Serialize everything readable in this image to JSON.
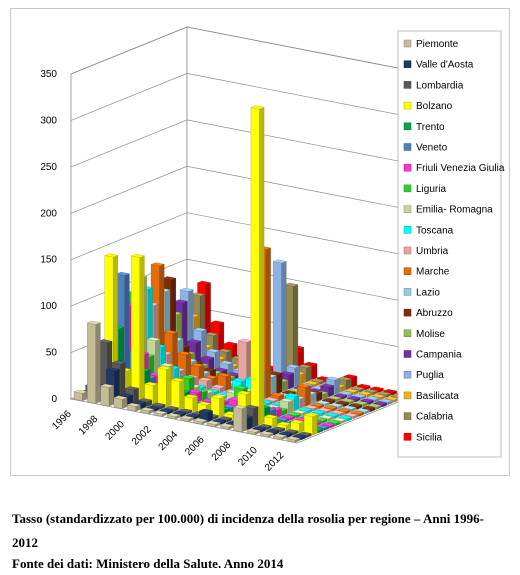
{
  "caption": {
    "line1": "Tasso (standardizzato per 100.000) di incidenza della rosolia per regione – Anni 1996-",
    "line2": "2012",
    "line3": "Fonte dei dati: Ministero della Salute. Anno 2014"
  },
  "chart_data": {
    "type": "bar",
    "subtype": "3d-column",
    "title": "",
    "xlabel": "",
    "ylabel": "",
    "ylim": [
      0,
      350
    ],
    "yticks": [
      0,
      50,
      100,
      150,
      200,
      250,
      300,
      350
    ],
    "x_tick_labels": [
      "1996",
      "1998",
      "2000",
      "2002",
      "2004",
      "2006",
      "2008",
      "2010",
      "2012"
    ],
    "categories": [
      "1996",
      "1997",
      "1998",
      "1999",
      "2000",
      "2001",
      "2002",
      "2003",
      "2004",
      "2005",
      "2006",
      "2007",
      "2008",
      "2009",
      "2010",
      "2011",
      "2012"
    ],
    "grid": true,
    "legend_position": "right",
    "series": [
      {
        "name": "Piemonte",
        "color": "#c4bd97",
        "values": [
          8,
          85,
          20,
          10,
          5,
          3,
          2,
          1,
          1,
          1,
          1,
          1,
          25,
          1,
          1,
          0,
          0
        ]
      },
      {
        "name": "Valle d'Aosta",
        "color": "#1f3864",
        "values": [
          5,
          15,
          35,
          10,
          5,
          2,
          1,
          0,
          0,
          10,
          0,
          0,
          12,
          0,
          0,
          0,
          0
        ]
      },
      {
        "name": "Lombardia",
        "color": "#595959",
        "values": [
          10,
          60,
          40,
          15,
          5,
          3,
          2,
          1,
          2,
          2,
          1,
          1,
          20,
          1,
          1,
          1,
          0
        ]
      },
      {
        "name": "Bolzano",
        "color": "#ffff00",
        "values": [
          5,
          150,
          30,
          155,
          20,
          40,
          30,
          15,
          10,
          20,
          5,
          30,
          340,
          10,
          5,
          10,
          20
        ]
      },
      {
        "name": "Trento",
        "color": "#00a651",
        "values": [
          3,
          70,
          20,
          30,
          10,
          5,
          15,
          5,
          2,
          5,
          1,
          2,
          15,
          2,
          1,
          1,
          1
        ]
      },
      {
        "name": "Veneto",
        "color": "#4f81bd",
        "values": [
          5,
          125,
          45,
          20,
          10,
          5,
          3,
          2,
          1,
          5,
          1,
          1,
          10,
          1,
          1,
          1,
          0
        ]
      },
      {
        "name": "Friuli Venezia Giulia",
        "color": "#ff33cc",
        "values": [
          3,
          90,
          40,
          20,
          10,
          5,
          10,
          3,
          5,
          10,
          2,
          2,
          8,
          1,
          1,
          1,
          0
        ]
      },
      {
        "name": "Liguria",
        "color": "#33cc33",
        "values": [
          5,
          100,
          35,
          15,
          10,
          20,
          8,
          3,
          2,
          20,
          2,
          1,
          5,
          1,
          1,
          1,
          1
        ]
      },
      {
        "name": "Emilia- Romagna",
        "color": "#c3d69b",
        "values": [
          5,
          115,
          50,
          25,
          10,
          8,
          5,
          3,
          10,
          15,
          2,
          2,
          12,
          1,
          1,
          1,
          1
        ]
      },
      {
        "name": "Toscana",
        "color": "#00ffff",
        "values": [
          5,
          100,
          40,
          20,
          10,
          5,
          3,
          2,
          20,
          25,
          1,
          2,
          15,
          1,
          1,
          1,
          1
        ]
      },
      {
        "name": "Umbria",
        "color": "#e6a5a0",
        "values": [
          3,
          80,
          30,
          15,
          10,
          10,
          5,
          3,
          60,
          30,
          2,
          1,
          10,
          1,
          1,
          1,
          1
        ]
      },
      {
        "name": "Marche",
        "color": "#e46c0a",
        "values": [
          5,
          120,
          50,
          30,
          20,
          10,
          15,
          5,
          15,
          160,
          5,
          3,
          20,
          2,
          1,
          1,
          1
        ]
      },
      {
        "name": "Lazio",
        "color": "#93cddd",
        "values": [
          5,
          90,
          40,
          20,
          10,
          5,
          5,
          3,
          15,
          20,
          2,
          2,
          10,
          1,
          1,
          1,
          1
        ]
      },
      {
        "name": "Abruzzo",
        "color": "#7f2c0c",
        "values": [
          3,
          100,
          30,
          15,
          10,
          5,
          3,
          2,
          10,
          20,
          1,
          1,
          8,
          1,
          1,
          1,
          1
        ]
      },
      {
        "name": "Molise",
        "color": "#9bbb59",
        "values": [
          2,
          60,
          20,
          10,
          5,
          3,
          2,
          1,
          5,
          10,
          1,
          1,
          5,
          1,
          1,
          1,
          0
        ]
      },
      {
        "name": "Campania",
        "color": "#7030a0",
        "values": [
          3,
          70,
          30,
          15,
          5,
          3,
          2,
          1,
          10,
          15,
          1,
          1,
          10,
          1,
          1,
          1,
          1
        ]
      },
      {
        "name": "Puglia",
        "color": "#8db3e2",
        "values": [
          3,
          80,
          40,
          20,
          10,
          5,
          3,
          2,
          130,
          20,
          2,
          1,
          15,
          1,
          1,
          1,
          1
        ]
      },
      {
        "name": "Basilicata",
        "color": "#f2b01e",
        "values": [
          2,
          50,
          20,
          10,
          5,
          3,
          2,
          1,
          5,
          10,
          1,
          1,
          5,
          1,
          1,
          1,
          1
        ]
      },
      {
        "name": "Calabria",
        "color": "#948a54",
        "values": [
          3,
          70,
          30,
          15,
          10,
          5,
          3,
          2,
          100,
          15,
          1,
          1,
          10,
          1,
          1,
          1,
          1
        ]
      },
      {
        "name": "Sicilia",
        "color": "#ff0000",
        "values": [
          3,
          80,
          40,
          20,
          10,
          5,
          3,
          2,
          30,
          15,
          1,
          1,
          10,
          1,
          1,
          1,
          1
        ]
      }
    ]
  }
}
